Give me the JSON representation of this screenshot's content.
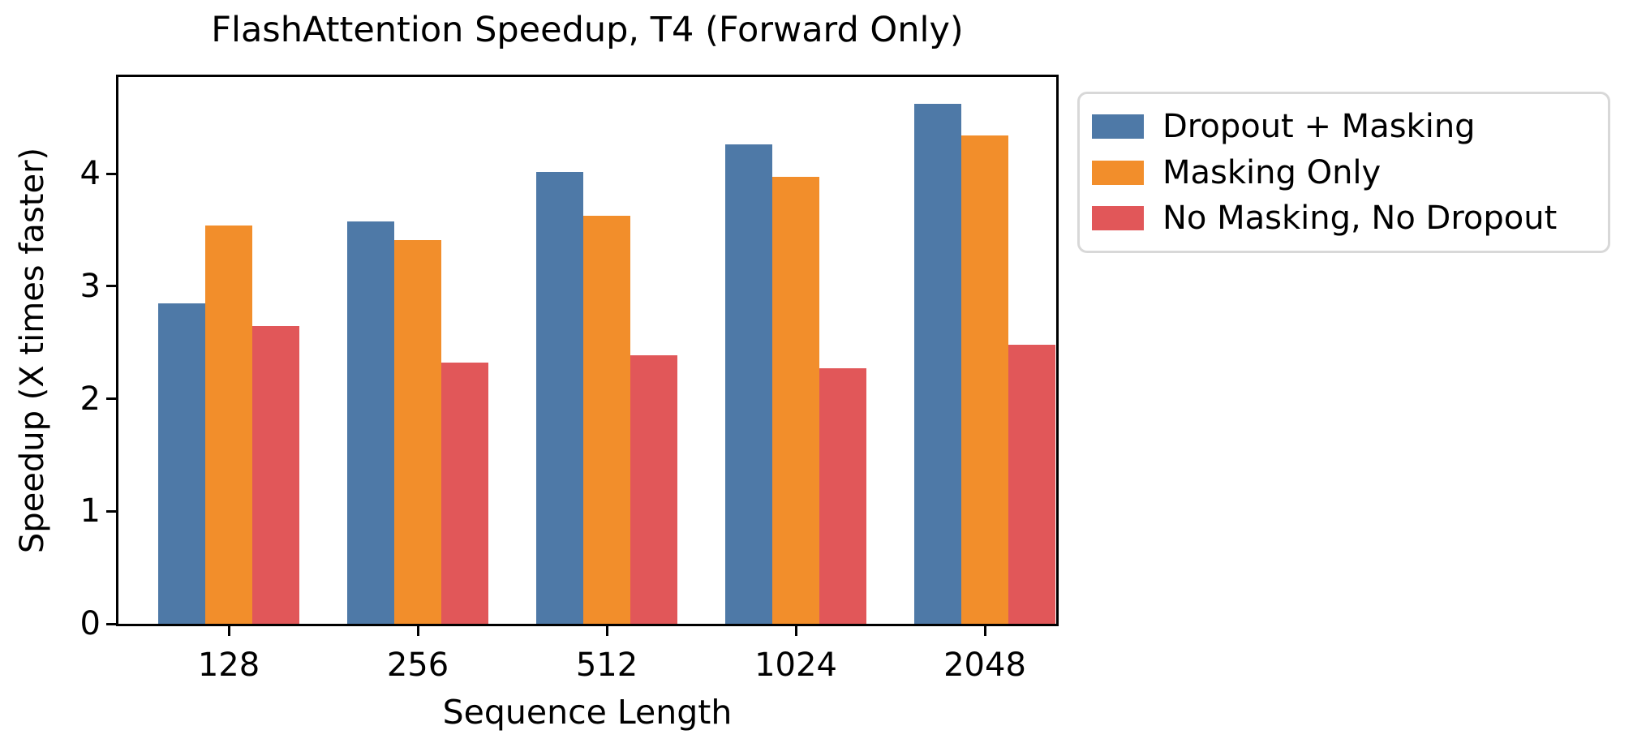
{
  "chart_data": {
    "type": "bar",
    "title": "FlashAttention Speedup, T4 (Forward Only)",
    "xlabel": "Sequence Length",
    "ylabel": "Speedup (X times faster)",
    "categories": [
      "128",
      "256",
      "512",
      "1024",
      "2048"
    ],
    "series": [
      {
        "name": "Dropout + Masking",
        "color": "#4E79A7",
        "values": [
          2.85,
          3.58,
          4.02,
          4.26,
          4.62
        ]
      },
      {
        "name": "Masking Only",
        "color": "#F28E2B",
        "values": [
          3.54,
          3.41,
          3.63,
          3.97,
          4.34
        ]
      },
      {
        "name": "No Masking, No Dropout",
        "color": "#E15759",
        "values": [
          2.65,
          2.32,
          2.39,
          2.27,
          2.48
        ]
      }
    ],
    "yticks": [
      0,
      1,
      2,
      3,
      4
    ],
    "ylim": [
      0,
      4.86
    ],
    "grid": false,
    "legend_position": "outside-right",
    "axis_color": "#000000",
    "legend_border_color": "#d8d8d8"
  }
}
